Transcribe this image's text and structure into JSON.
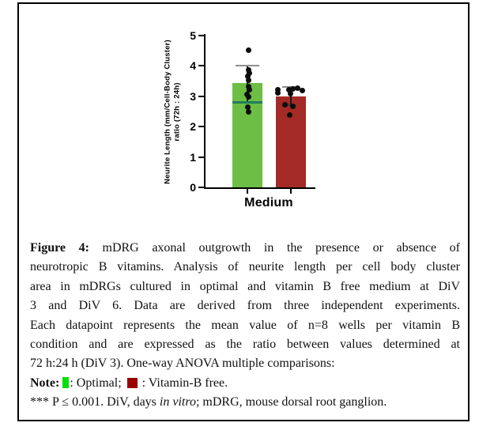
{
  "chart_data": {
    "type": "bar",
    "categories": [
      "Medium"
    ],
    "xlabel": "Medium",
    "ylabel_line1": "Neurite Length (mm/Cell-Body Cluster)",
    "ylabel_line2": "ratio (72h : 24h)",
    "ylim": [
      0,
      5
    ],
    "yticks": [
      0,
      1,
      2,
      3,
      4,
      5
    ],
    "grid": false,
    "legend_position": "in-caption",
    "series": [
      {
        "name": "Optimal",
        "color": "#6CBE44",
        "mean": 3.44,
        "sd_top": 4.0,
        "sd_bottom": 2.8,
        "cap_width": 30,
        "cap_color": "#8F8F8F",
        "bottom_marker": {
          "width": 38,
          "thickness": 3,
          "color": "#1F7D5B"
        },
        "points": [
          [
            4.52,
            1
          ],
          [
            3.87,
            1
          ],
          [
            3.77,
            2
          ],
          [
            3.65,
            0
          ],
          [
            3.52,
            1
          ],
          [
            3.31,
            1
          ],
          [
            3.21,
            2
          ],
          [
            3.05,
            -1
          ],
          [
            2.98,
            1
          ],
          [
            2.65,
            0
          ],
          [
            2.48,
            1
          ]
        ]
      },
      {
        "name": "Vitamin-B free",
        "color": "#A42B25",
        "mean": 3.0,
        "sd_top": 3.3,
        "sd_bottom": 2.7,
        "cap_width": 22,
        "cap_color": "#8F8F8F",
        "bottom_marker": {
          "width": 14,
          "thickness": 2,
          "color": "#3a3a3a"
        },
        "points": [
          [
            3.22,
            -17
          ],
          [
            3.12,
            -17
          ],
          [
            3.22,
            -3
          ],
          [
            3.25,
            2
          ],
          [
            3.27,
            8
          ],
          [
            3.18,
            14
          ],
          [
            3.08,
            -1
          ],
          [
            2.72,
            -8
          ],
          [
            2.68,
            2
          ],
          [
            2.38,
            -2
          ]
        ]
      }
    ]
  },
  "colors": {
    "legend_optimal": "#00DF00",
    "legend_vitb_free": "#9B0000"
  },
  "caption": {
    "l1_bold": "Figure 4:",
    "l1_rest": " mDRG axonal outgrowth in the presence or absence of",
    "l2": "neurotropic B vitamins. Analysis of neurite length per cell body cluster",
    "l3": "area in mDRGs cultured in optimal and vitamin B free medium at DiV",
    "l4": "3 and DiV 6. Data are derived from three independent experiments.",
    "l5": "Each datapoint represents the mean value of n=8 wells per vitamin B",
    "l6": "condition and are expressed as the ratio between values determined at",
    "l7": "72 h:24 h (DiV 3). One-way ANOVA multiple comparisons:",
    "l8_bold": "Note:",
    "l8_seg1": ": Optimal;",
    "l8_seg2": ": Vitamin-B free.",
    "l9_pre": "*** P ≤ 0.001. DiV, days ",
    "l9_italic": "in vitro",
    "l9_post": "; mDRG, mouse dorsal root ganglion."
  }
}
